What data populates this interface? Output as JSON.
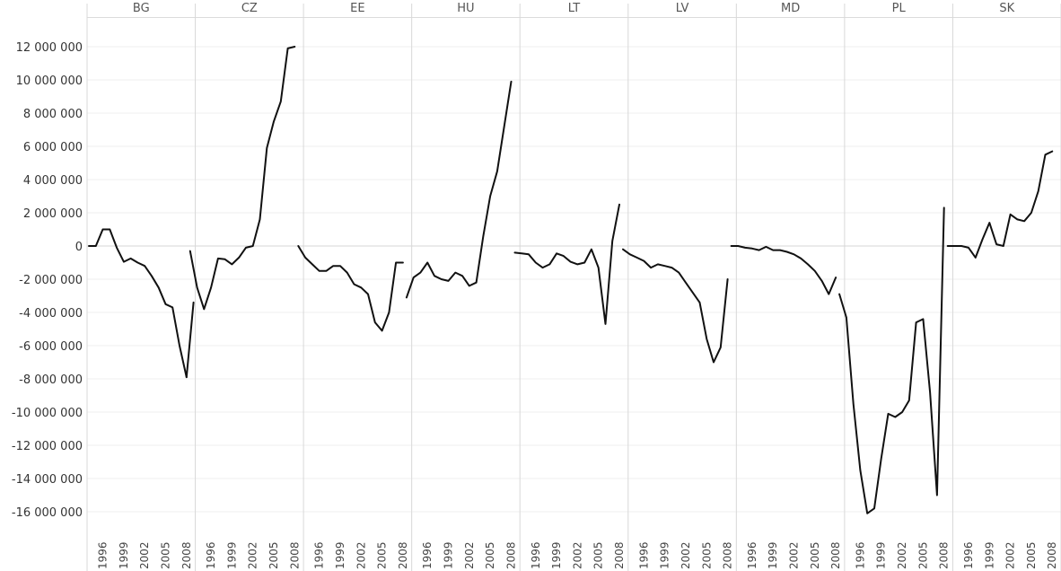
{
  "chart_data": {
    "type": "line",
    "facet_by": "country",
    "panels": [
      "BG",
      "CZ",
      "EE",
      "HU",
      "LT",
      "LV",
      "MD",
      "PL",
      "SK"
    ],
    "x_tick_labels": [
      "1996",
      "1999",
      "2002",
      "2005",
      "2008"
    ],
    "y_ticks": [
      12000000,
      10000000,
      8000000,
      6000000,
      4000000,
      2000000,
      0,
      -2000000,
      -4000000,
      -6000000,
      -8000000,
      -10000000,
      -12000000,
      -14000000,
      -16000000
    ],
    "y_tick_labels": [
      "12 000 000",
      "10 000 000",
      "8 000 000",
      "6 000 000",
      "4 000 000",
      "2 000 000",
      "0",
      "-2 000 000",
      "-4 000 000",
      "-6 000 000",
      "-8 000 000",
      "-10 000 000",
      "-12 000 000",
      "-14 000 000",
      "-16 000 000"
    ],
    "ylim": [
      -17500000,
      13500000
    ],
    "grid": true,
    "line_color": "#111111",
    "series": [
      {
        "panel": "BG",
        "x": [
          1994,
          1995,
          1996,
          1997,
          1998,
          1999,
          2000,
          2001,
          2002,
          2003,
          2004,
          2005,
          2006,
          2007,
          2008
        ],
        "values": [
          0,
          0,
          1000000,
          1000000,
          -100000,
          -950000,
          -750000,
          -1000000,
          -1200000,
          -1800000,
          -2500000,
          -3500000,
          -3700000,
          -6000000,
          -7900000
        ]
      },
      {
        "panel": "BG-tail",
        "x": [
          2008,
          2009
        ],
        "values": [
          -7900000,
          -3400000
        ]
      },
      {
        "panel": "CZ",
        "x": [
          1993,
          1994,
          1995,
          1996,
          1997,
          1998,
          1999,
          2000,
          2001,
          2002,
          2003,
          2004,
          2005,
          2006,
          2007,
          2008
        ],
        "values": [
          -300000,
          -2500000,
          -3800000,
          -2500000,
          -750000,
          -800000,
          -1100000,
          -700000,
          -100000,
          0,
          1600000,
          5900000,
          7500000,
          8700000,
          11900000,
          12000000
        ]
      },
      {
        "panel": "EE",
        "x": [
          1993,
          1994,
          1995,
          1996,
          1997,
          1998,
          1999,
          2000,
          2001,
          2002,
          2003,
          2004,
          2005,
          2006,
          2007,
          2008
        ],
        "values": [
          0,
          -700000,
          -1100000,
          -1500000,
          -1500000,
          -1200000,
          -1200000,
          -1600000,
          -2300000,
          -2500000,
          -2900000,
          -4600000,
          -5100000,
          -4000000,
          -1000000,
          -1000000
        ]
      },
      {
        "panel": "HU",
        "x": [
          1993,
          1994,
          1995,
          1996,
          1997,
          1998,
          1999,
          2000,
          2001,
          2002,
          2003,
          2004,
          2005,
          2006,
          2007,
          2008
        ],
        "values": [
          -3100000,
          -1900000,
          -1600000,
          -1000000,
          -1800000,
          -2000000,
          -2100000,
          -1600000,
          -1800000,
          -2400000,
          -2200000,
          600000,
          3000000,
          4500000,
          7200000,
          9900000
        ]
      },
      {
        "panel": "LT",
        "x": [
          1993,
          1994,
          1995,
          1996,
          1997,
          1998,
          1999,
          2000,
          2001,
          2002,
          2003,
          2004,
          2005,
          2006,
          2007,
          2008
        ],
        "values": [
          -400000,
          -450000,
          -500000,
          -1000000,
          -1300000,
          -1100000,
          -450000,
          -600000,
          -950000,
          -1100000,
          -1000000,
          -200000,
          -1300000,
          -4700000,
          300000,
          2500000
        ]
      },
      {
        "panel": "LV",
        "x": [
          1993,
          1994,
          1995,
          1996,
          1997,
          1998,
          1999,
          2000,
          2001,
          2002,
          2003,
          2004,
          2005,
          2006,
          2007,
          2008
        ],
        "values": [
          -200000,
          -500000,
          -700000,
          -900000,
          -1300000,
          -1100000,
          -1200000,
          -1300000,
          -1600000,
          -2200000,
          -2800000,
          -3400000,
          -5600000,
          -7000000,
          -6100000,
          -2000000
        ]
      },
      {
        "panel": "MD",
        "x": [
          1993,
          1994,
          1995,
          1996,
          1997,
          1998,
          1999,
          2000,
          2001,
          2002,
          2003,
          2004,
          2005,
          2006,
          2007,
          2008
        ],
        "values": [
          0,
          0,
          -100000,
          -150000,
          -250000,
          -50000,
          -250000,
          -250000,
          -350000,
          -500000,
          -750000,
          -1100000,
          -1500000,
          -2100000,
          -2900000,
          -1900000
        ]
      },
      {
        "panel": "PL",
        "x": [
          1993,
          1994,
          1995,
          1996,
          1997,
          1998,
          1999,
          2000,
          2001,
          2002,
          2003,
          2004,
          2005,
          2006,
          2007,
          2008
        ],
        "values": [
          -2900000,
          -4300000,
          -9500000,
          -13500000,
          -16100000,
          -15800000,
          -12800000,
          -10100000,
          -10300000,
          -10000000,
          -9300000,
          -4600000,
          -4400000,
          -8800000,
          -15000000,
          2300000
        ]
      },
      {
        "panel": "SK",
        "x": [
          1993,
          1994,
          1995,
          1996,
          1997,
          1998,
          1999,
          2000,
          2001,
          2002,
          2003,
          2004,
          2005,
          2006,
          2007,
          2008
        ],
        "values": [
          0,
          0,
          0,
          -100000,
          -700000,
          400000,
          1400000,
          100000,
          0,
          1900000,
          1600000,
          1500000,
          2000000,
          3300000,
          5500000,
          5700000
        ]
      }
    ]
  }
}
